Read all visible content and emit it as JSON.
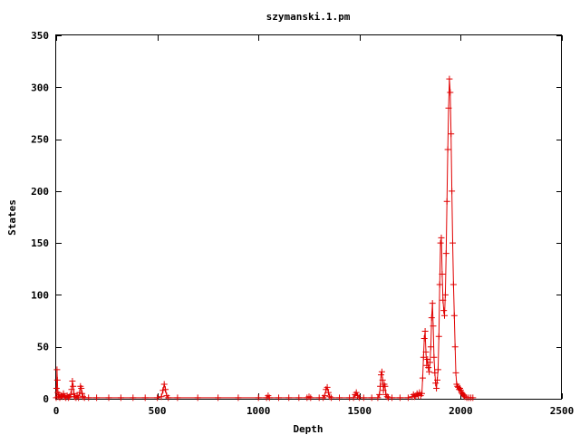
{
  "chart_data": {
    "type": "line",
    "title": "szymanski.1.pm",
    "xlabel": "Depth",
    "ylabel": "States",
    "xlim": [
      0,
      2500
    ],
    "ylim": [
      0,
      350
    ],
    "xticks": [
      0,
      500,
      1000,
      1500,
      2000,
      2500
    ],
    "yticks": [
      0,
      50,
      100,
      150,
      200,
      250,
      300,
      350
    ],
    "grid": false,
    "legend": "none",
    "marker": "plus",
    "color": "#e00000",
    "series": [
      {
        "points": [
          [
            0,
            1
          ],
          [
            2,
            10
          ],
          [
            4,
            28
          ],
          [
            6,
            18
          ],
          [
            8,
            6
          ],
          [
            10,
            2
          ],
          [
            14,
            4
          ],
          [
            18,
            1
          ],
          [
            24,
            3
          ],
          [
            30,
            2
          ],
          [
            36,
            5
          ],
          [
            42,
            2
          ],
          [
            48,
            1
          ],
          [
            54,
            3
          ],
          [
            60,
            1
          ],
          [
            66,
            2
          ],
          [
            72,
            4
          ],
          [
            76,
            9
          ],
          [
            80,
            17
          ],
          [
            84,
            12
          ],
          [
            88,
            5
          ],
          [
            92,
            2
          ],
          [
            98,
            1
          ],
          [
            104,
            3
          ],
          [
            110,
            1
          ],
          [
            116,
            6
          ],
          [
            120,
            12
          ],
          [
            124,
            10
          ],
          [
            128,
            5
          ],
          [
            132,
            2
          ],
          [
            140,
            1
          ],
          [
            160,
            1
          ],
          [
            200,
            1
          ],
          [
            260,
            1
          ],
          [
            320,
            1
          ],
          [
            380,
            1
          ],
          [
            440,
            1
          ],
          [
            500,
            1
          ],
          [
            520,
            2
          ],
          [
            528,
            8
          ],
          [
            534,
            14
          ],
          [
            540,
            9
          ],
          [
            546,
            3
          ],
          [
            554,
            1
          ],
          [
            600,
            1
          ],
          [
            700,
            1
          ],
          [
            800,
            1
          ],
          [
            900,
            1
          ],
          [
            1000,
            1
          ],
          [
            1040,
            1
          ],
          [
            1048,
            3
          ],
          [
            1054,
            1
          ],
          [
            1100,
            1
          ],
          [
            1150,
            1
          ],
          [
            1200,
            1
          ],
          [
            1240,
            1
          ],
          [
            1250,
            2
          ],
          [
            1258,
            1
          ],
          [
            1300,
            1
          ],
          [
            1320,
            1
          ],
          [
            1328,
            3
          ],
          [
            1334,
            9
          ],
          [
            1340,
            11
          ],
          [
            1346,
            6
          ],
          [
            1352,
            2
          ],
          [
            1360,
            1
          ],
          [
            1400,
            1
          ],
          [
            1450,
            1
          ],
          [
            1470,
            1
          ],
          [
            1478,
            4
          ],
          [
            1484,
            6
          ],
          [
            1490,
            3
          ],
          [
            1498,
            1
          ],
          [
            1520,
            1
          ],
          [
            1560,
            1
          ],
          [
            1590,
            1
          ],
          [
            1598,
            4
          ],
          [
            1602,
            12
          ],
          [
            1606,
            23
          ],
          [
            1610,
            26
          ],
          [
            1614,
            18
          ],
          [
            1618,
            8
          ],
          [
            1622,
            14
          ],
          [
            1626,
            12
          ],
          [
            1630,
            4
          ],
          [
            1636,
            2
          ],
          [
            1642,
            1
          ],
          [
            1660,
            1
          ],
          [
            1700,
            1
          ],
          [
            1740,
            1
          ],
          [
            1760,
            2
          ],
          [
            1766,
            4
          ],
          [
            1772,
            2
          ],
          [
            1778,
            3
          ],
          [
            1784,
            5
          ],
          [
            1790,
            3
          ],
          [
            1796,
            6
          ],
          [
            1802,
            3
          ],
          [
            1808,
            5
          ],
          [
            1812,
            20
          ],
          [
            1816,
            40
          ],
          [
            1820,
            58
          ],
          [
            1824,
            65
          ],
          [
            1828,
            45
          ],
          [
            1832,
            32
          ],
          [
            1836,
            38
          ],
          [
            1840,
            30
          ],
          [
            1844,
            26
          ],
          [
            1848,
            35
          ],
          [
            1852,
            50
          ],
          [
            1856,
            78
          ],
          [
            1860,
            92
          ],
          [
            1864,
            70
          ],
          [
            1868,
            40
          ],
          [
            1872,
            25
          ],
          [
            1876,
            15
          ],
          [
            1880,
            10
          ],
          [
            1884,
            18
          ],
          [
            1888,
            28
          ],
          [
            1892,
            60
          ],
          [
            1896,
            110
          ],
          [
            1900,
            150
          ],
          [
            1904,
            155
          ],
          [
            1908,
            120
          ],
          [
            1912,
            95
          ],
          [
            1916,
            85
          ],
          [
            1920,
            80
          ],
          [
            1924,
            100
          ],
          [
            1928,
            140
          ],
          [
            1932,
            190
          ],
          [
            1936,
            240
          ],
          [
            1940,
            280
          ],
          [
            1944,
            308
          ],
          [
            1948,
            295
          ],
          [
            1952,
            255
          ],
          [
            1956,
            200
          ],
          [
            1960,
            150
          ],
          [
            1964,
            110
          ],
          [
            1968,
            80
          ],
          [
            1972,
            50
          ],
          [
            1976,
            25
          ],
          [
            1980,
            14
          ],
          [
            1984,
            12
          ],
          [
            1988,
            11
          ],
          [
            1992,
            9
          ],
          [
            1996,
            10
          ],
          [
            2000,
            8
          ],
          [
            2004,
            6
          ],
          [
            2008,
            5
          ],
          [
            2012,
            4
          ],
          [
            2016,
            3
          ],
          [
            2020,
            2
          ],
          [
            2030,
            1
          ],
          [
            2040,
            1
          ],
          [
            2050,
            1
          ],
          [
            2060,
            1
          ]
        ]
      }
    ]
  }
}
